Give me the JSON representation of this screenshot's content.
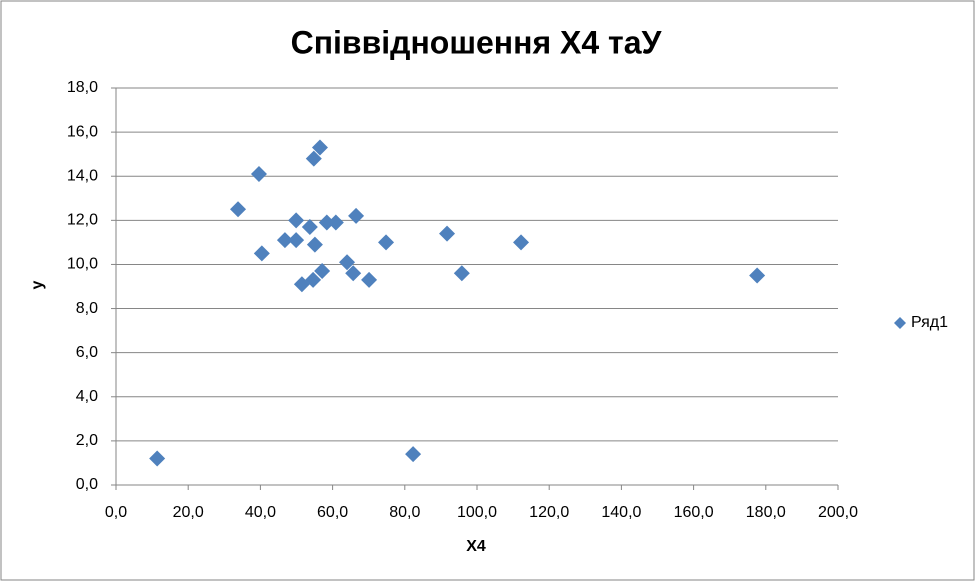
{
  "chart_data": {
    "type": "scatter",
    "title": "Співвідношення Х4 таУ",
    "x_label": "X4",
    "y_label": "у",
    "series": [
      {
        "name": "Ряд1",
        "color": "#4f81bd",
        "x": [
          11.4,
          33.8,
          39.6,
          40.4,
          46.8,
          49.9,
          49.9,
          51.5,
          53.7,
          54.6,
          54.8,
          55.1,
          56.5,
          57.1,
          58.4,
          60.9,
          64.0,
          65.7,
          66.5,
          70.1,
          74.8,
          82.3,
          91.7,
          95.8,
          112.2,
          177.6
        ],
        "values": [
          1.2,
          12.5,
          14.1,
          10.5,
          11.1,
          12.0,
          11.1,
          9.1,
          11.7,
          9.3,
          14.8,
          10.9,
          15.3,
          9.7,
          11.9,
          11.9,
          10.1,
          9.6,
          12.2,
          9.3,
          11.0,
          1.4,
          11.4,
          9.6,
          11.0,
          9.5
        ]
      }
    ],
    "xlim": [
      0,
      200
    ],
    "xticks": [
      {
        "value": 0,
        "label": "0,0"
      },
      {
        "value": 20,
        "label": "20,0"
      },
      {
        "value": 40,
        "label": "40,0"
      },
      {
        "value": 60,
        "label": "60,0"
      },
      {
        "value": 80,
        "label": "80,0"
      },
      {
        "value": 100,
        "label": "100,0"
      },
      {
        "value": 120,
        "label": "120,0"
      },
      {
        "value": 140,
        "label": "140,0"
      },
      {
        "value": 160,
        "label": "160,0"
      },
      {
        "value": 180,
        "label": "180,0"
      },
      {
        "value": 200,
        "label": "200,0"
      }
    ],
    "ylim": [
      0,
      18
    ],
    "yticks": [
      {
        "value": 0,
        "label": "0,0"
      },
      {
        "value": 2,
        "label": "2,0"
      },
      {
        "value": 4,
        "label": "4,0"
      },
      {
        "value": 6,
        "label": "6,0"
      },
      {
        "value": 8,
        "label": "8,0"
      },
      {
        "value": 10,
        "label": "10,0"
      },
      {
        "value": 12,
        "label": "12,0"
      },
      {
        "value": 14,
        "label": "14,0"
      },
      {
        "value": 16,
        "label": "16,0"
      },
      {
        "value": 18,
        "label": "18,0"
      }
    ],
    "grid": true,
    "legend": "right"
  }
}
